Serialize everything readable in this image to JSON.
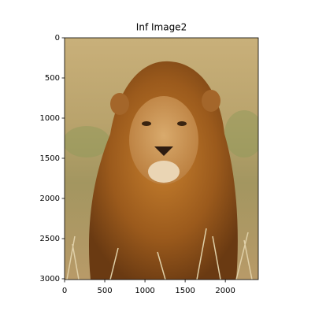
{
  "chart_data": {
    "type": "image",
    "title": "Inf Image2",
    "xlim": [
      0,
      2410
    ],
    "xticks": [
      0,
      500,
      1000,
      1500,
      2000
    ],
    "ylim": [
      3010,
      0
    ],
    "yticks": [
      0,
      500,
      1000,
      1500,
      2000,
      2500,
      3000
    ]
  }
}
